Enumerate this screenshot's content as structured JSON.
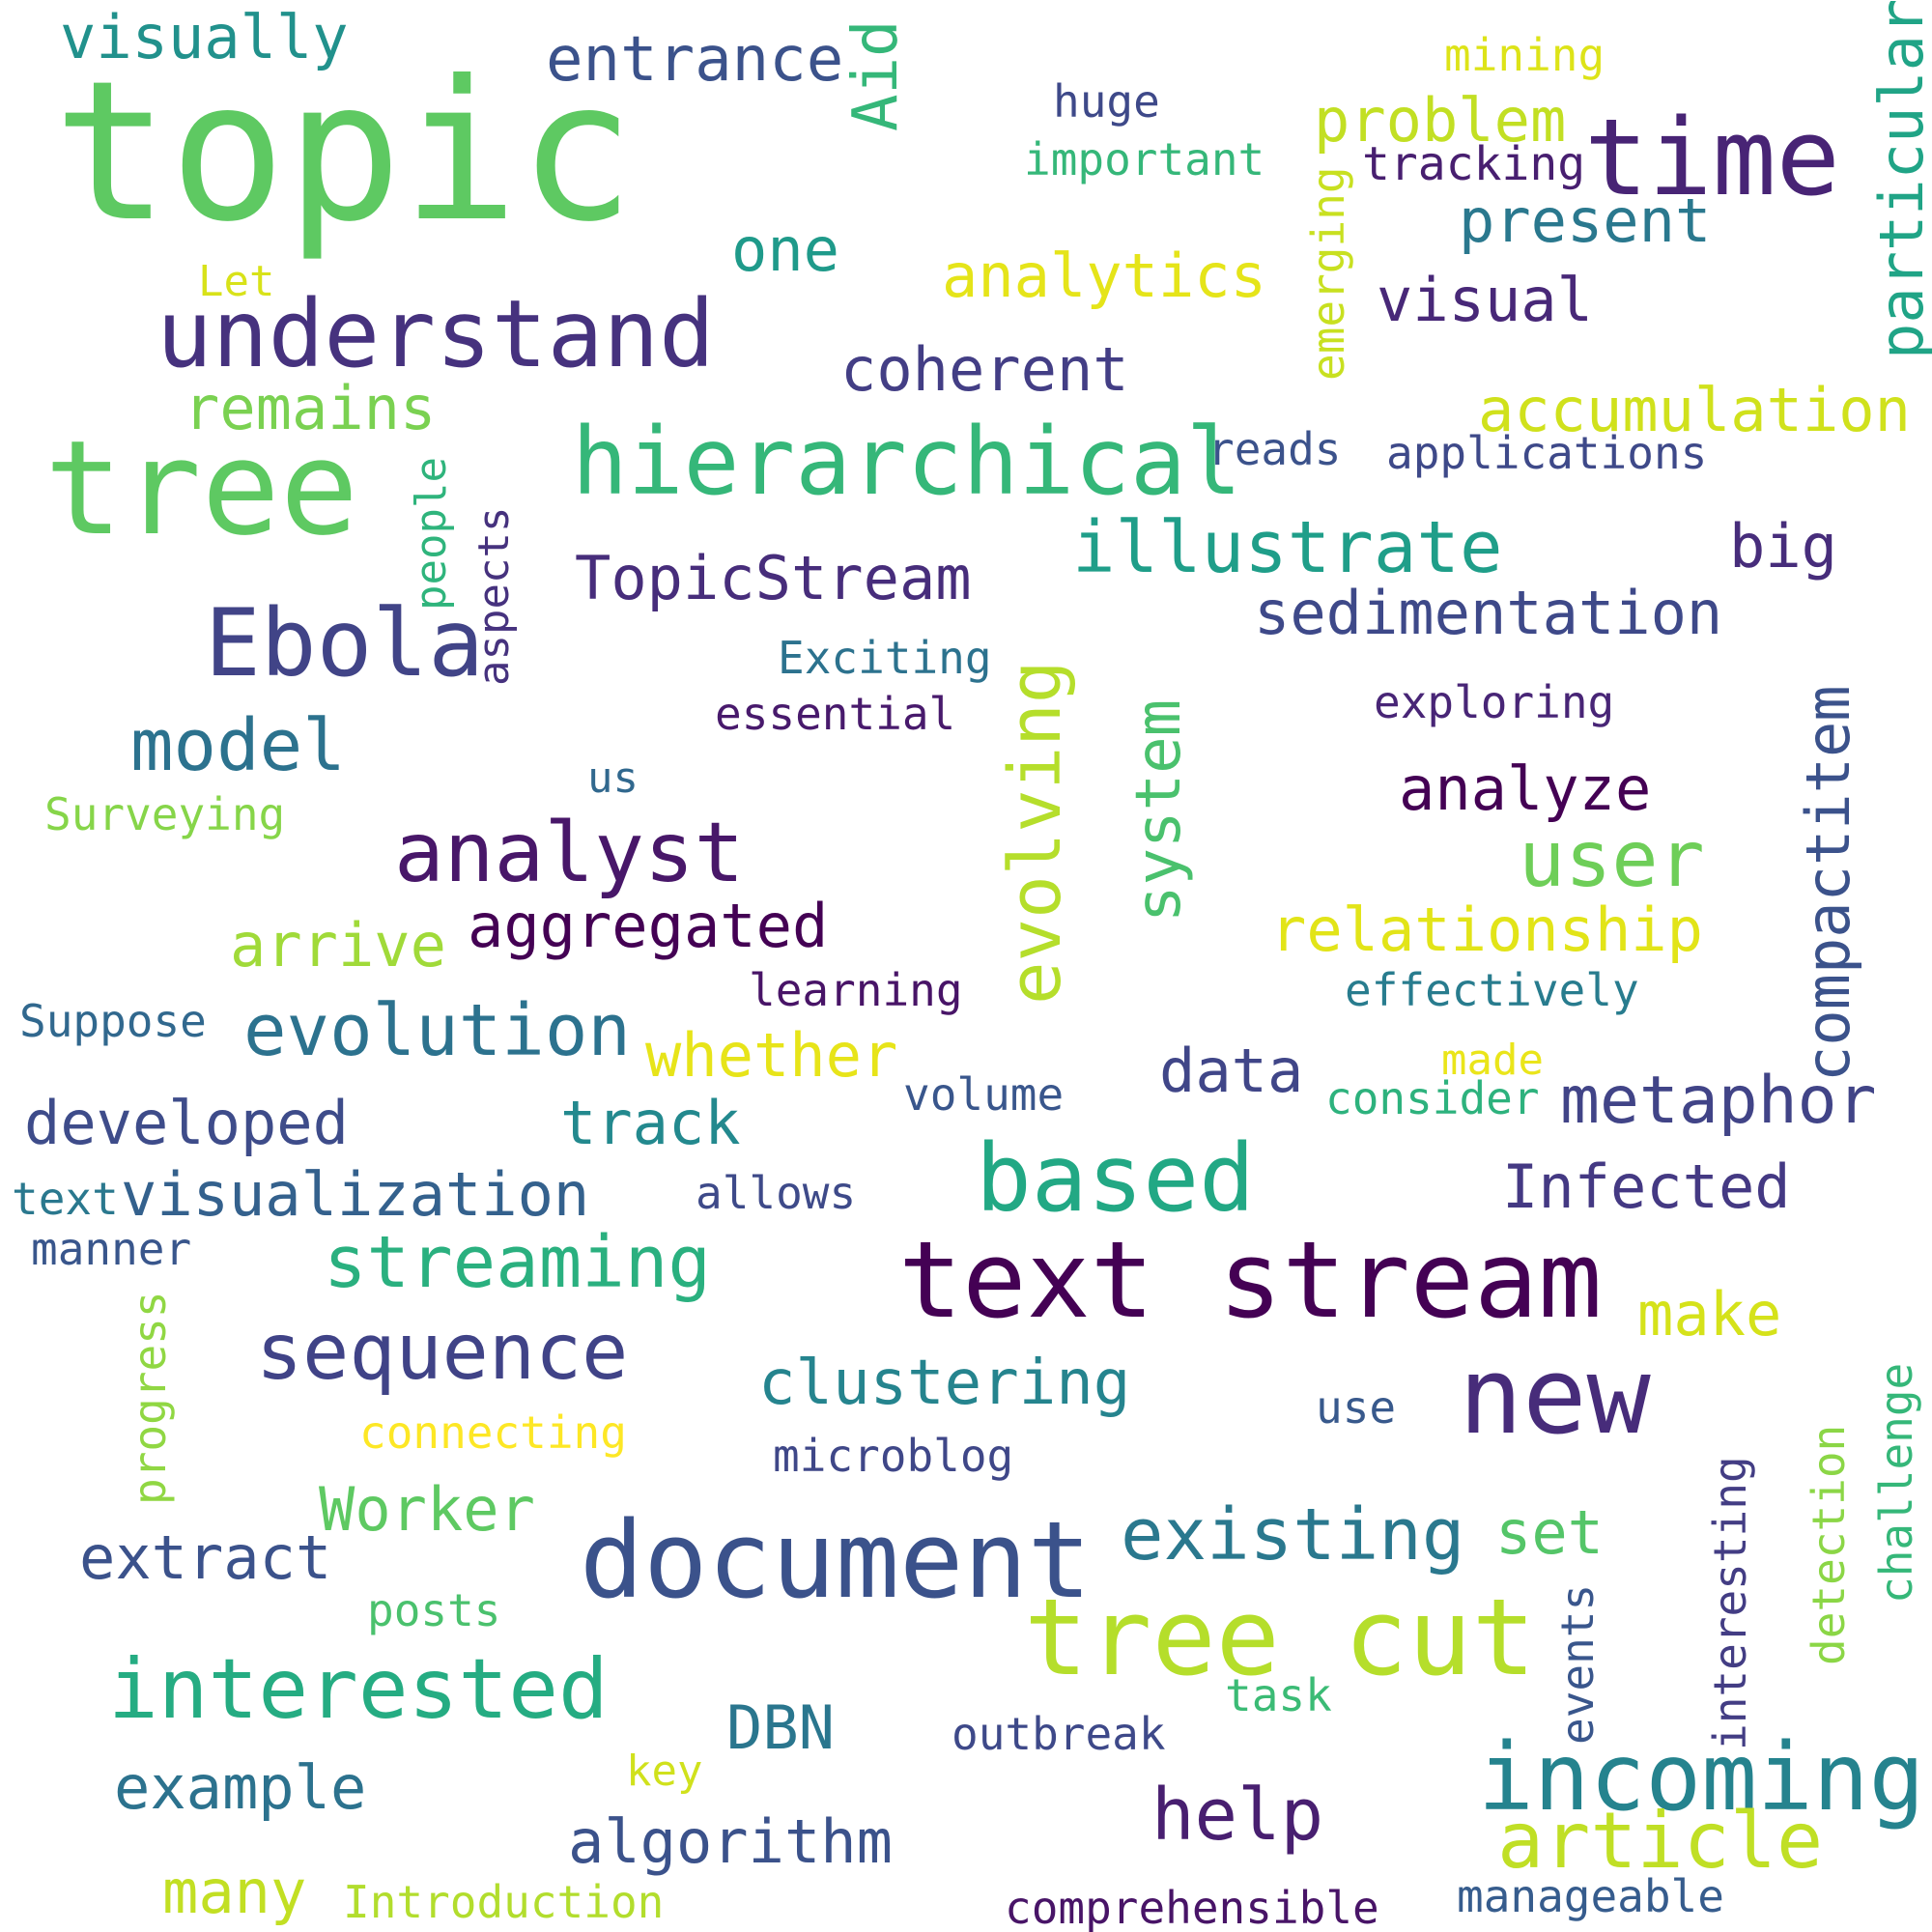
{
  "words": [
    {
      "text": "topic",
      "color": "#5ec962"
    },
    {
      "text": "visually",
      "color": "#21918c"
    },
    {
      "text": "entrance",
      "color": "#3b528b"
    },
    {
      "text": "Aid",
      "color": "#35b779"
    },
    {
      "text": "mining",
      "color": "#dde318"
    },
    {
      "text": "particular",
      "color": "#20a486"
    },
    {
      "text": "huge",
      "color": "#3e4989"
    },
    {
      "text": "important",
      "color": "#35b779"
    },
    {
      "text": "problem",
      "color": "#c2df23"
    },
    {
      "text": "time",
      "color": "#482475"
    },
    {
      "text": "tracking",
      "color": "#481f70"
    },
    {
      "text": "emerging",
      "color": "#c8e020"
    },
    {
      "text": "present",
      "color": "#2a788e"
    },
    {
      "text": "one",
      "color": "#1f9a8a"
    },
    {
      "text": "Let",
      "color": "#d8e219"
    },
    {
      "text": "analytics",
      "color": "#e5e419"
    },
    {
      "text": "understand",
      "color": "#46327e"
    },
    {
      "text": "visual",
      "color": "#482878"
    },
    {
      "text": "coherent",
      "color": "#433e85"
    },
    {
      "text": "remains",
      "color": "#7ad151"
    },
    {
      "text": "accumulation",
      "color": "#d0e11c"
    },
    {
      "text": "tree",
      "color": "#5ec962"
    },
    {
      "text": "hierarchical",
      "color": "#35b779"
    },
    {
      "text": "reads",
      "color": "#3b528b"
    },
    {
      "text": "applications",
      "color": "#3e4989"
    },
    {
      "text": "people",
      "color": "#2fb47c"
    },
    {
      "text": "aspects",
      "color": "#46327e"
    },
    {
      "text": "illustrate",
      "color": "#1f9e89"
    },
    {
      "text": "big",
      "color": "#472d7b"
    },
    {
      "text": "TopicStream",
      "color": "#472d7b"
    },
    {
      "text": "sedimentation",
      "color": "#3e4989"
    },
    {
      "text": "Ebola",
      "color": "#414487"
    },
    {
      "text": "Exciting",
      "color": "#2c728e"
    },
    {
      "text": "essential",
      "color": "#481a6c"
    },
    {
      "text": "evolving",
      "color": "#b5de2b"
    },
    {
      "text": "system",
      "color": "#4ac16d"
    },
    {
      "text": "exploring",
      "color": "#482576"
    },
    {
      "text": "compactitem",
      "color": "#3b528b"
    },
    {
      "text": "model",
      "color": "#2c728e"
    },
    {
      "text": "us",
      "color": "#31688e"
    },
    {
      "text": "Surveying",
      "color": "#86d549"
    },
    {
      "text": "analyze",
      "color": "#440154"
    },
    {
      "text": "analyst",
      "color": "#481769"
    },
    {
      "text": "user",
      "color": "#6ece58"
    },
    {
      "text": "aggregated",
      "color": "#440154"
    },
    {
      "text": "arrive",
      "color": "#a0da39"
    },
    {
      "text": "relationship",
      "color": "#e2e418"
    },
    {
      "text": "learning",
      "color": "#481467"
    },
    {
      "text": "effectively",
      "color": "#287c8e"
    },
    {
      "text": "Suppose",
      "color": "#31688e"
    },
    {
      "text": "evolution",
      "color": "#2c728e"
    },
    {
      "text": "whether",
      "color": "#e7e419"
    },
    {
      "text": "data",
      "color": "#404688"
    },
    {
      "text": "made",
      "color": "#eae51a"
    },
    {
      "text": "consider",
      "color": "#2db27d"
    },
    {
      "text": "metaphor",
      "color": "#414487"
    },
    {
      "text": "volume",
      "color": "#39568c"
    },
    {
      "text": "developed",
      "color": "#3e4c8a"
    },
    {
      "text": "track",
      "color": "#23898e"
    },
    {
      "text": "based",
      "color": "#22a884"
    },
    {
      "text": "Infected",
      "color": "#443983"
    },
    {
      "text": "text",
      "color": "#2a788e"
    },
    {
      "text": "visualization",
      "color": "#34618d"
    },
    {
      "text": "allows",
      "color": "#3e4a89"
    },
    {
      "text": "manner",
      "color": "#39568c"
    },
    {
      "text": "streaming",
      "color": "#2ab07f"
    },
    {
      "text": "text stream",
      "color": "#440154"
    },
    {
      "text": "make",
      "color": "#d5e21a"
    },
    {
      "text": "progress",
      "color": "#90d743"
    },
    {
      "text": "sequence",
      "color": "#404387"
    },
    {
      "text": "clustering",
      "color": "#25848e"
    },
    {
      "text": "new",
      "color": "#472c7a"
    },
    {
      "text": "connecting",
      "color": "#fde725"
    },
    {
      "text": "use",
      "color": "#38598c"
    },
    {
      "text": "microblog",
      "color": "#3f4788"
    },
    {
      "text": "challenge",
      "color": "#35b779"
    },
    {
      "text": "detection",
      "color": "#8bd646"
    },
    {
      "text": "interesting",
      "color": "#433d84"
    },
    {
      "text": "Worker",
      "color": "#5ec962"
    },
    {
      "text": "extract",
      "color": "#3b528b"
    },
    {
      "text": "document",
      "color": "#3b528b"
    },
    {
      "text": "existing",
      "color": "#2a788e"
    },
    {
      "text": "set",
      "color": "#54c568"
    },
    {
      "text": "events",
      "color": "#39568c"
    },
    {
      "text": "posts",
      "color": "#4ac16d"
    },
    {
      "text": "tree cut",
      "color": "#b5de2b"
    },
    {
      "text": "interested",
      "color": "#25ac82"
    },
    {
      "text": "task",
      "color": "#3bbb75"
    },
    {
      "text": "DBN",
      "color": "#2a768e"
    },
    {
      "text": "outbreak",
      "color": "#3e4989"
    },
    {
      "text": "incoming",
      "color": "#25838e"
    },
    {
      "text": "example",
      "color": "#2c728e"
    },
    {
      "text": "key",
      "color": "#d0e11c"
    },
    {
      "text": "help",
      "color": "#481f70"
    },
    {
      "text": "article",
      "color": "#c0df25"
    },
    {
      "text": "algorithm",
      "color": "#3b528b"
    },
    {
      "text": "many",
      "color": "#c2df23"
    },
    {
      "text": "Introduction",
      "color": "#b2dd2d"
    },
    {
      "text": "comprehensible",
      "color": "#481467"
    },
    {
      "text": "manageable",
      "color": "#365c8d"
    }
  ]
}
